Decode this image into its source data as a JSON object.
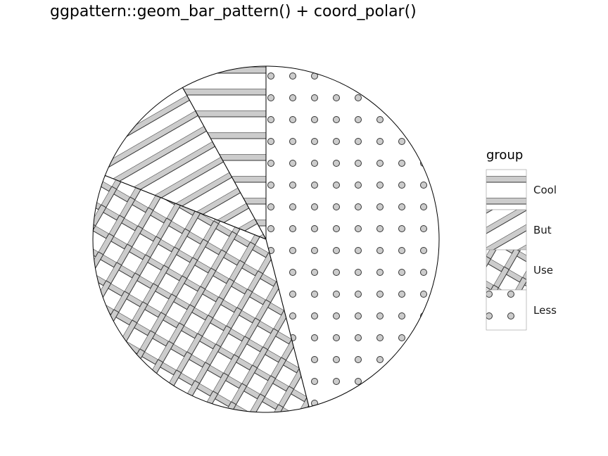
{
  "title": "ggpattern::geom_bar_pattern() + coord_polar()",
  "chart_data": {
    "type": "pie",
    "title": "ggpattern::geom_bar_pattern() + coord_polar()",
    "legend_title": "group",
    "legend_position": "right",
    "slices": [
      {
        "label": "Cool",
        "value": 8,
        "pattern": "horizontal-stripe"
      },
      {
        "label": "But",
        "value": 11,
        "pattern": "diagonal-stripe"
      },
      {
        "label": "Use",
        "value": 35,
        "pattern": "crosshatch"
      },
      {
        "label": "Less",
        "value": 46,
        "pattern": "circles"
      }
    ],
    "colors": {
      "pattern_fill": "#cccccc",
      "pattern_line": "#333333",
      "background": "#ffffff",
      "border": "#000000"
    },
    "start": "top",
    "direction": "counterclockwise"
  }
}
